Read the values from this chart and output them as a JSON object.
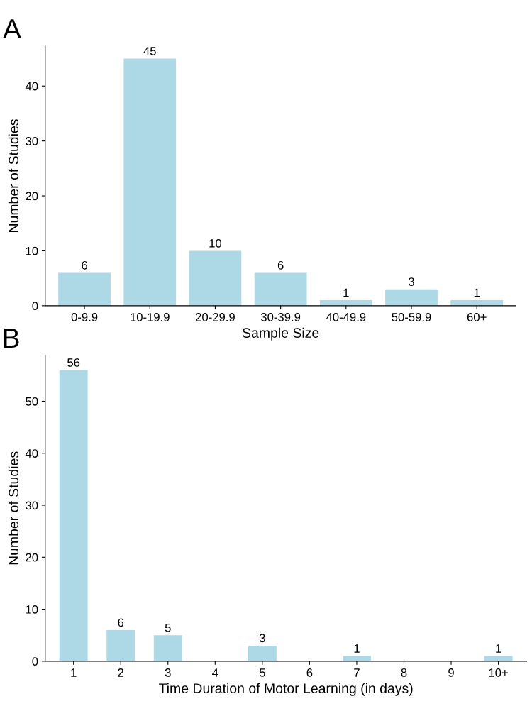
{
  "chart_data": [
    {
      "type": "bar",
      "title": "A",
      "xlabel": "Sample Size",
      "ylabel": "Number of Studies",
      "categories": [
        "0-9.9",
        "10-19.9",
        "20-29.9",
        "30-39.9",
        "40-49.9",
        "50-59.9",
        "60+"
      ],
      "values": [
        6,
        45,
        10,
        6,
        1,
        3,
        1
      ],
      "color": "#add8e6",
      "ylim": [
        0,
        47.25
      ],
      "yticks": [
        0,
        10,
        20,
        30,
        40
      ],
      "data_labels": true,
      "grid": false,
      "legend": false
    },
    {
      "type": "bar",
      "title": "B",
      "xlabel": "Time Duration of Motor Learning (in days)",
      "ylabel": "Number of Studies",
      "categories": [
        "1",
        "2",
        "3",
        "4",
        "5",
        "6",
        "7",
        "8",
        "9",
        "10+"
      ],
      "values": [
        56,
        6,
        5,
        null,
        3,
        null,
        1,
        null,
        null,
        1
      ],
      "color": "#add8e6",
      "ylim": [
        0,
        58.8
      ],
      "yticks": [
        0,
        10,
        20,
        30,
        40,
        50
      ],
      "data_labels": true,
      "grid": false,
      "legend": false
    }
  ]
}
